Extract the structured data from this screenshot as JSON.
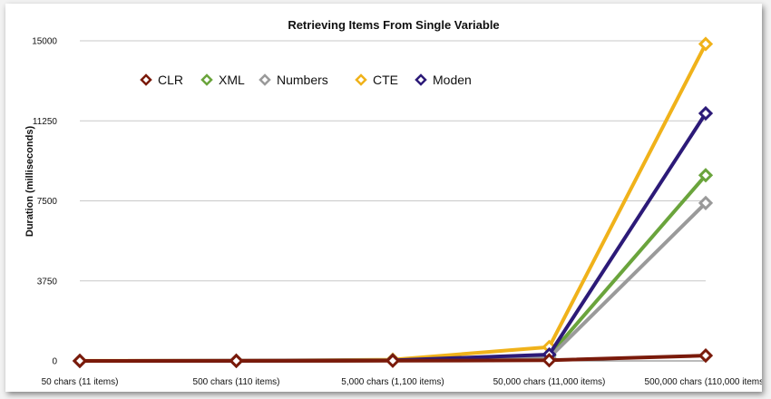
{
  "chart_data": {
    "type": "line",
    "title": "Retrieving Items From Single Variable",
    "xlabel": "",
    "ylabel": "Duration (milliseconds)",
    "categories": [
      "50 chars (11 items)",
      "500 chars (110 items)",
      "5,000 chars (1,100 items)",
      "50,000 chars (11,000 items)",
      "500,000 chars (110,000 items)"
    ],
    "yticks": [
      "0",
      "3750",
      "7500",
      "11250",
      "15000"
    ],
    "ylim": [
      0,
      15000
    ],
    "grid": true,
    "legend_position": "top-left",
    "series": [
      {
        "name": "CLR",
        "color": "#7a1a0a",
        "values": [
          2,
          3,
          8,
          30,
          250
        ]
      },
      {
        "name": "XML",
        "color": "#6aa43c",
        "values": [
          2,
          4,
          20,
          250,
          8700
        ]
      },
      {
        "name": "Numbers",
        "color": "#9a9a9a",
        "values": [
          2,
          4,
          20,
          150,
          7400
        ]
      },
      {
        "name": "CTE",
        "color": "#f0b21a",
        "values": [
          3,
          6,
          60,
          650,
          14850
        ]
      },
      {
        "name": "Moden",
        "color": "#2c1a78",
        "values": [
          2,
          4,
          25,
          300,
          11600
        ]
      }
    ]
  }
}
